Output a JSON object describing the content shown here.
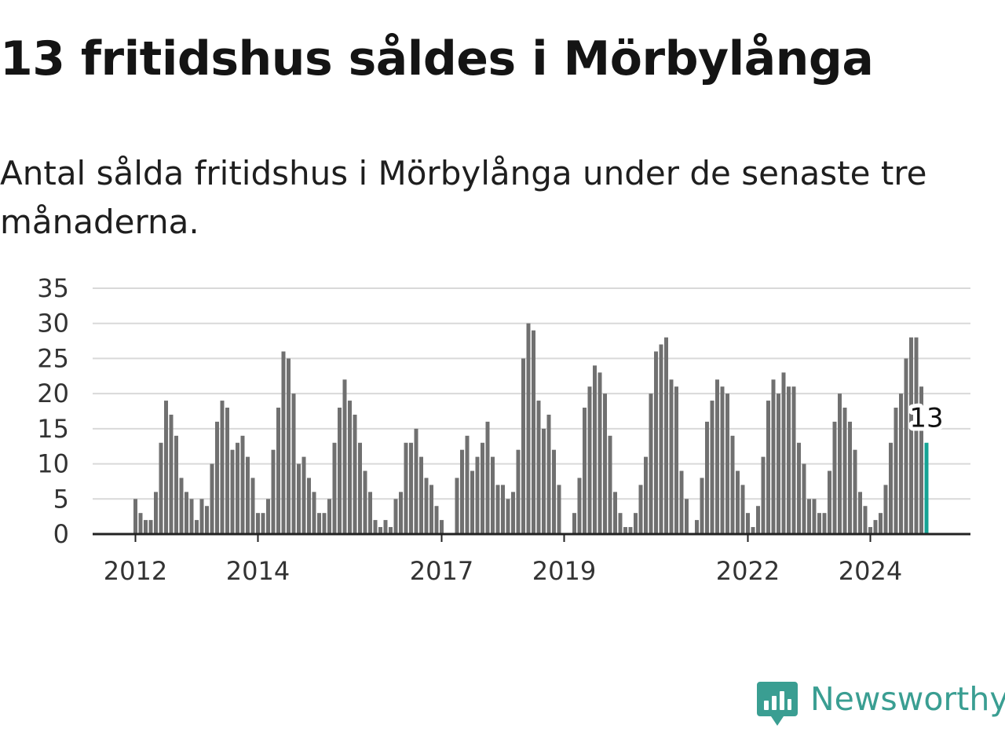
{
  "title": "13 fritidshus såldes i Mörbylånga",
  "subtitle": "Antal sålda fritidshus i Mörbylånga under de senaste tre månaderna.",
  "brand": {
    "name": "Newsworthy",
    "icon": "newsworthy-logo-icon",
    "color": "#3a9e92"
  },
  "colors": {
    "bar": "#707070",
    "highlight": "#16a394",
    "grid": "#d9d9d9",
    "axis": "#222222"
  },
  "chart_data": {
    "type": "bar",
    "title": "",
    "xlabel": "",
    "ylabel": "",
    "ylim": [
      0,
      35
    ],
    "yticks": [
      0,
      5,
      10,
      15,
      20,
      25,
      30,
      35
    ],
    "grid": true,
    "x_unit": "month",
    "start": "2011-01",
    "xticks": [
      {
        "label": "2012",
        "month": "2012-01"
      },
      {
        "label": "2014",
        "month": "2014-01"
      },
      {
        "label": "2017",
        "month": "2017-01"
      },
      {
        "label": "2019",
        "month": "2019-01"
      },
      {
        "label": "2022",
        "month": "2022-01"
      },
      {
        "label": "2024",
        "month": "2024-01"
      }
    ],
    "highlight_label": "13",
    "values": [
      0,
      0,
      0,
      0,
      0,
      0,
      0,
      0,
      0,
      0,
      0,
      0,
      5,
      3,
      2,
      2,
      6,
      13,
      19,
      17,
      14,
      8,
      6,
      5,
      2,
      5,
      4,
      10,
      16,
      19,
      18,
      12,
      13,
      14,
      11,
      8,
      3,
      3,
      5,
      12,
      18,
      26,
      25,
      20,
      10,
      11,
      8,
      6,
      3,
      3,
      5,
      13,
      18,
      22,
      19,
      17,
      13,
      9,
      6,
      2,
      1,
      2,
      1,
      5,
      6,
      13,
      13,
      15,
      11,
      8,
      7,
      4,
      2,
      0,
      0,
      8,
      12,
      14,
      9,
      11,
      13,
      16,
      11,
      7,
      7,
      5,
      6,
      12,
      25,
      30,
      29,
      19,
      15,
      17,
      12,
      7,
      0,
      0,
      3,
      8,
      18,
      21,
      24,
      23,
      20,
      14,
      6,
      3,
      1,
      1,
      3,
      7,
      11,
      20,
      26,
      27,
      28,
      22,
      21,
      9,
      5,
      0,
      2,
      8,
      16,
      19,
      22,
      21,
      20,
      14,
      9,
      7,
      3,
      1,
      4,
      11,
      19,
      22,
      20,
      23,
      21,
      21,
      13,
      10,
      5,
      5,
      3,
      3,
      9,
      16,
      20,
      18,
      16,
      12,
      6,
      4,
      1,
      2,
      3,
      7,
      13,
      18,
      20,
      25,
      28,
      28,
      21,
      13
    ]
  }
}
